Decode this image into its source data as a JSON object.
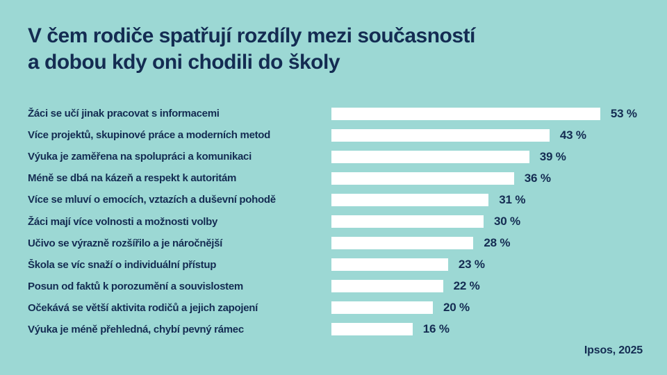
{
  "title": {
    "line1": "V čem rodiče spatřují rozdíly mezi současností",
    "line2": "a dobou kdy oni chodili do školy"
  },
  "source": "Ipsos, 2025",
  "colors": {
    "background": "#9CD8D4",
    "text": "#142C52",
    "bar": "#FFFFFF"
  },
  "chart_data": {
    "type": "bar",
    "orientation": "horizontal",
    "title": "V čem rodiče spatřují rozdíly mezi současností a dobou kdy oni chodili do školy",
    "value_suffix": " %",
    "xlim": [
      0,
      60
    ],
    "grid": false,
    "legend": "none",
    "categories": [
      "Žáci se učí jinak pracovat s informacemi",
      "Více projektů, skupinové práce a moderních metod",
      "Výuka je zaměřena na spolupráci a komunikaci",
      "Méně se dbá na kázeň a respekt k autoritám",
      "Více se mluví o emocích, vztazích a duševní pohodě",
      "Žáci mají více volnosti a možnosti volby",
      "Učivo se výrazně rozšířilo a je náročnější",
      "Škola se víc snaží o individuální přístup",
      "Posun od faktů k porozumění a souvislostem",
      "Očekává se větší aktivita rodičů a jejich zapojení",
      "Výuka je méně přehledná, chybí pevný rámec"
    ],
    "values": [
      53,
      43,
      39,
      36,
      31,
      30,
      28,
      23,
      22,
      20,
      16
    ]
  }
}
